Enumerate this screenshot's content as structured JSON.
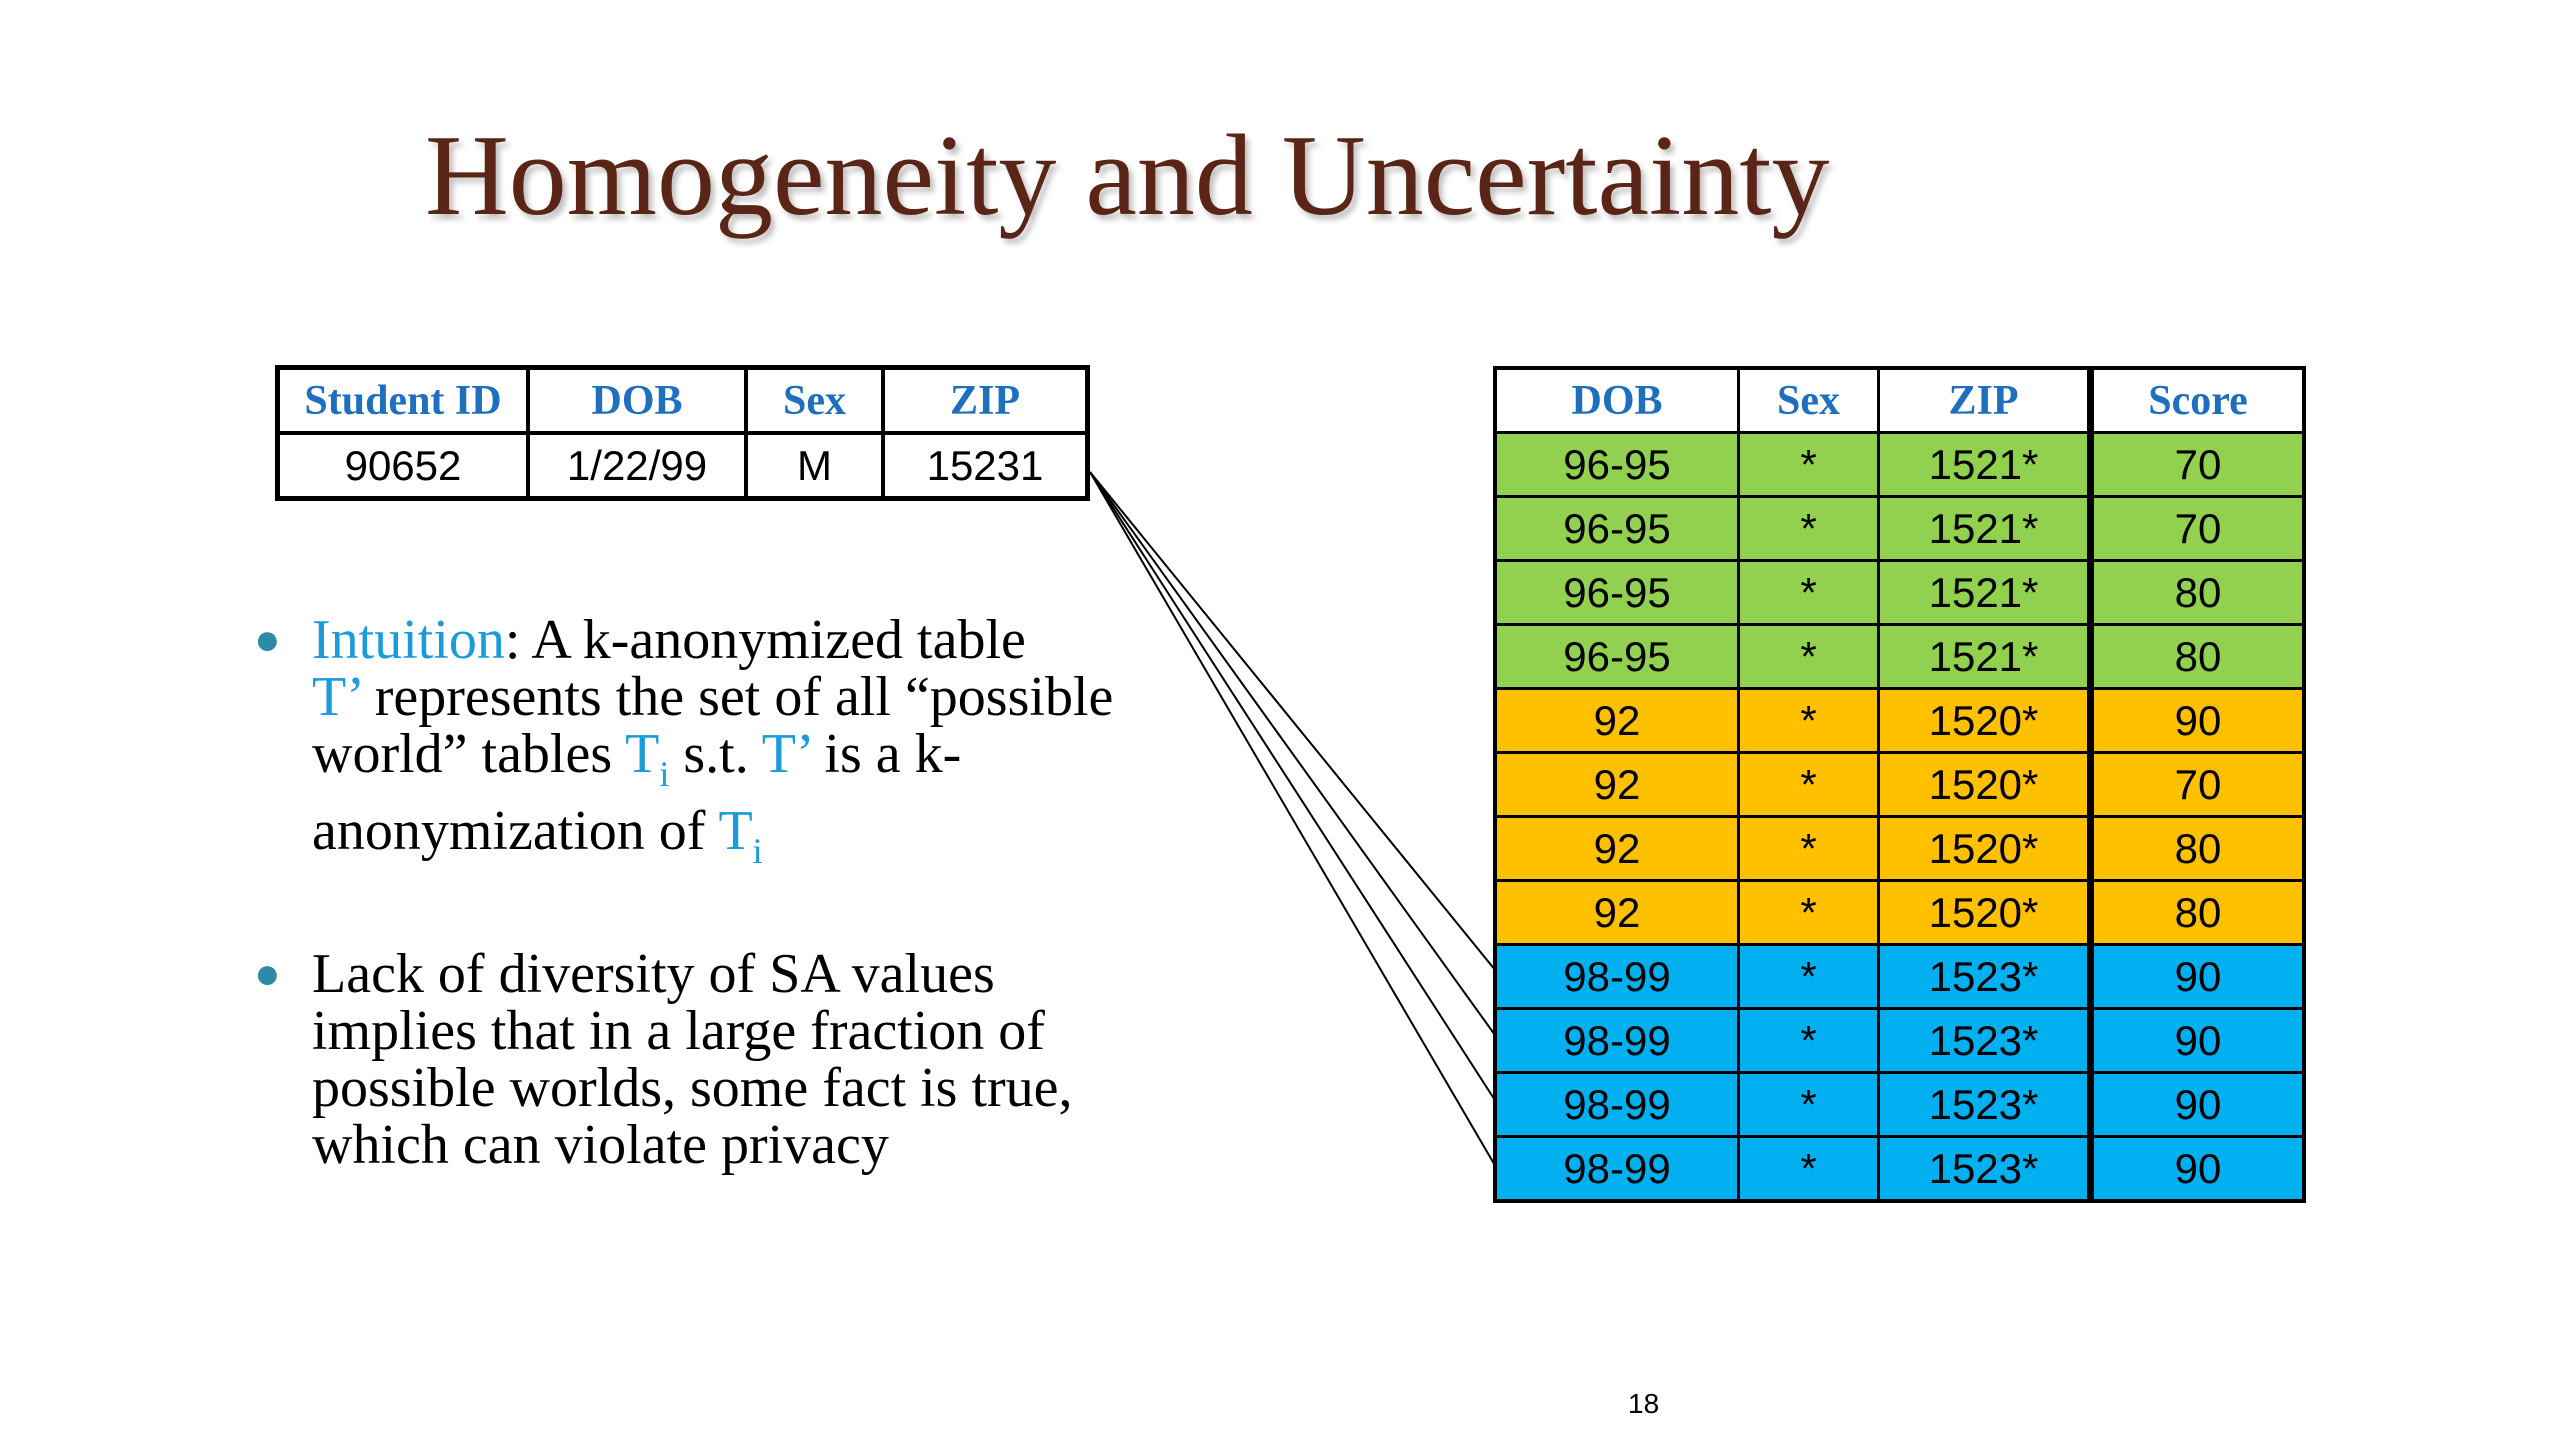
{
  "slide": {
    "title": "Homogeneity and Uncertainty",
    "page_number": "18"
  },
  "record_table": {
    "headers": [
      "Student ID",
      "DOB",
      "Sex",
      "ZIP"
    ],
    "row": [
      "90652",
      "1/22/99",
      "M",
      "15231"
    ]
  },
  "anon_table": {
    "headers": [
      "DOB",
      "Sex",
      "ZIP",
      "Score"
    ],
    "rows": [
      {
        "group": "green",
        "cells": [
          "96-95",
          "*",
          "1521*",
          "70"
        ]
      },
      {
        "group": "green",
        "cells": [
          "96-95",
          "*",
          "1521*",
          "70"
        ]
      },
      {
        "group": "green",
        "cells": [
          "96-95",
          "*",
          "1521*",
          "80"
        ]
      },
      {
        "group": "green",
        "cells": [
          "96-95",
          "*",
          "1521*",
          "80"
        ]
      },
      {
        "group": "orange",
        "cells": [
          "92",
          "*",
          "1520*",
          "90"
        ]
      },
      {
        "group": "orange",
        "cells": [
          "92",
          "*",
          "1520*",
          "70"
        ]
      },
      {
        "group": "orange",
        "cells": [
          "92",
          "*",
          "1520*",
          "80"
        ]
      },
      {
        "group": "orange",
        "cells": [
          "92",
          "*",
          "1520*",
          "80"
        ]
      },
      {
        "group": "blue",
        "cells": [
          "98-99",
          "*",
          "1523*",
          "90"
        ]
      },
      {
        "group": "blue",
        "cells": [
          "98-99",
          "*",
          "1523*",
          "90"
        ]
      },
      {
        "group": "blue",
        "cells": [
          "98-99",
          "*",
          "1523*",
          "90"
        ]
      },
      {
        "group": "blue",
        "cells": [
          "98-99",
          "*",
          "1523*",
          "90"
        ]
      }
    ]
  },
  "bullets": {
    "b1": {
      "intuition": "Intuition",
      "t1": ": A k-anonymized table",
      "tprime1": "T’",
      "t2": " represents the set of all “possible world” tables ",
      "T_a": "T",
      "sub_a": "i",
      "t3": " s.t. ",
      "tprime2": "T’",
      "t4": " is a k-anonymization of ",
      "T_b": "T",
      "sub_b": "i"
    },
    "b2": "Lack of diversity of SA values implies that in a large fraction of possible worlds, some fact is true, which can violate privacy"
  },
  "colors": {
    "title": "#5a2416",
    "header_text": "#1f6fbf",
    "highlight": "#1b9bd9",
    "green": "#92d050",
    "orange": "#ffc000",
    "blue": "#00b0f0"
  }
}
